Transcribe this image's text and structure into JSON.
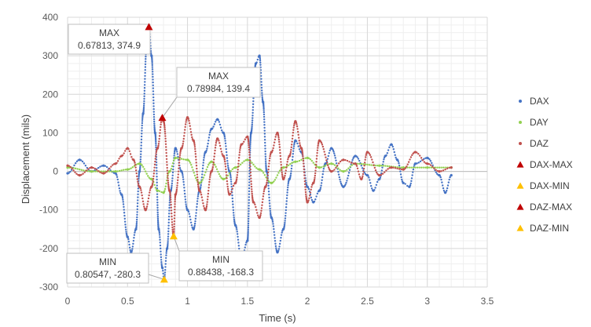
{
  "chart_data": {
    "type": "scatter",
    "xlabel": "Time (s)",
    "ylabel": "Displacement (mils)",
    "xlim": [
      0,
      3.5
    ],
    "ylim": [
      -300,
      400
    ],
    "x_ticks": [
      0,
      0.5,
      1,
      1.5,
      2,
      2.5,
      3,
      3.5
    ],
    "x_tick_labels": [
      "0",
      "0.5",
      "1",
      "1.5",
      "2",
      "2.5",
      "3",
      "3.5"
    ],
    "y_ticks": [
      -300,
      -200,
      -100,
      0,
      100,
      200,
      300,
      400
    ],
    "y_tick_labels": [
      "-300",
      "-200",
      "-100",
      "0",
      "100",
      "200",
      "300",
      "400"
    ],
    "grid": "major and minor",
    "legend_position": "right",
    "series": [
      {
        "name": "DAX",
        "color": "#4472C4",
        "marker": "dot",
        "x": [
          0,
          0.1,
          0.2,
          0.3,
          0.4,
          0.45,
          0.5,
          0.53,
          0.57,
          0.6,
          0.63,
          0.66,
          0.678,
          0.7,
          0.73,
          0.76,
          0.79,
          0.805,
          0.83,
          0.86,
          0.9,
          0.95,
          1.0,
          1.05,
          1.1,
          1.15,
          1.2,
          1.25,
          1.3,
          1.35,
          1.4,
          1.45,
          1.5,
          1.53,
          1.57,
          1.6,
          1.63,
          1.66,
          1.7,
          1.75,
          1.8,
          1.85,
          1.9,
          1.95,
          2.0,
          2.05,
          2.1,
          2.15,
          2.2,
          2.3,
          2.4,
          2.5,
          2.55,
          2.6,
          2.65,
          2.7,
          2.75,
          2.8,
          2.85,
          2.9,
          3.0,
          3.1,
          3.15,
          3.2
        ],
        "y": [
          -5,
          30,
          0,
          15,
          -5,
          -60,
          -170,
          -210,
          -150,
          0,
          150,
          330,
          374.9,
          300,
          100,
          -150,
          -250,
          -280.3,
          -200,
          -50,
          60,
          0,
          -100,
          -150,
          -50,
          50,
          110,
          135,
          100,
          0,
          -140,
          -230,
          -180,
          100,
          280,
          300,
          180,
          0,
          -120,
          -210,
          -150,
          -20,
          80,
          50,
          -40,
          -80,
          -50,
          20,
          60,
          -40,
          40,
          -10,
          -50,
          -20,
          40,
          70,
          30,
          -30,
          -40,
          20,
          35,
          -10,
          -55,
          -10
        ]
      },
      {
        "name": "DAY",
        "color": "#92D050",
        "marker": "dot",
        "x": [
          0,
          0.2,
          0.4,
          0.5,
          0.6,
          0.7,
          0.75,
          0.8,
          0.85,
          0.9,
          1.0,
          1.1,
          1.2,
          1.3,
          1.4,
          1.5,
          1.6,
          1.7,
          1.8,
          1.9,
          2.0,
          2.1,
          2.2,
          2.3,
          2.4,
          2.6,
          2.8,
          3.0,
          3.2
        ],
        "y": [
          10,
          0,
          0,
          5,
          20,
          -20,
          -50,
          -55,
          0,
          35,
          30,
          -30,
          25,
          -20,
          10,
          30,
          5,
          -30,
          10,
          25,
          35,
          10,
          20,
          0,
          20,
          15,
          10,
          10,
          10
        ]
      },
      {
        "name": "DAZ",
        "color": "#C0504D",
        "marker": "dot",
        "x": [
          0,
          0.1,
          0.2,
          0.3,
          0.4,
          0.45,
          0.5,
          0.55,
          0.6,
          0.65,
          0.7,
          0.75,
          0.79,
          0.8,
          0.85,
          0.884,
          0.9,
          0.95,
          1.0,
          1.05,
          1.1,
          1.15,
          1.2,
          1.25,
          1.3,
          1.35,
          1.4,
          1.45,
          1.5,
          1.55,
          1.6,
          1.65,
          1.7,
          1.75,
          1.8,
          1.85,
          1.9,
          1.95,
          2.0,
          2.05,
          2.1,
          2.2,
          2.3,
          2.4,
          2.45,
          2.5,
          2.6,
          2.7,
          2.8,
          2.9,
          3.0,
          3.1,
          3.2
        ],
        "y": [
          15,
          -10,
          10,
          -5,
          20,
          40,
          60,
          30,
          -40,
          -100,
          -40,
          60,
          139.4,
          130,
          -50,
          -168.3,
          -60,
          60,
          140,
          80,
          -50,
          -100,
          0,
          85,
          40,
          -60,
          -30,
          70,
          90,
          -80,
          -120,
          -40,
          50,
          100,
          -20,
          40,
          130,
          60,
          -80,
          -30,
          80,
          0,
          30,
          20,
          -20,
          50,
          -10,
          10,
          5,
          50,
          20,
          0,
          10
        ]
      }
    ],
    "markers": [
      {
        "name": "DAX-MAX",
        "shape": "triangle",
        "color": "#C00000",
        "x": 0.67813,
        "y": 374.9
      },
      {
        "name": "DAX-MIN",
        "shape": "triangle",
        "color": "#FFC000",
        "x": 0.80547,
        "y": -280.3
      },
      {
        "name": "DAZ-MAX",
        "shape": "triangle",
        "color": "#C00000",
        "x": 0.78984,
        "y": 139.4
      },
      {
        "name": "DAZ-MIN",
        "shape": "triangle",
        "color": "#FFC000",
        "x": 0.88438,
        "y": -168.3
      }
    ],
    "annotations": [
      {
        "id": "dax-max",
        "title": "MAX",
        "value": "0.67813, 374.9",
        "x": 0.67813,
        "y": 374.9
      },
      {
        "id": "daz-max",
        "title": "MAX",
        "value": "0.78984, 139.4",
        "x": 0.78984,
        "y": 139.4
      },
      {
        "id": "dax-min",
        "title": "MIN",
        "value": "0.80547, -280.3",
        "x": 0.80547,
        "y": -280.3
      },
      {
        "id": "daz-min",
        "title": "MIN",
        "value": "0.88438, -168.3",
        "x": 0.88438,
        "y": -168.3
      }
    ],
    "legend": [
      {
        "label": "DAX",
        "symbol": "dot",
        "color": "#4472C4"
      },
      {
        "label": "DAY",
        "symbol": "dot",
        "color": "#92D050"
      },
      {
        "label": "DAZ",
        "symbol": "dot",
        "color": "#C0504D"
      },
      {
        "label": "DAX-MAX",
        "symbol": "triangle",
        "color": "#C00000"
      },
      {
        "label": "DAX-MIN",
        "symbol": "triangle",
        "color": "#FFC000"
      },
      {
        "label": "DAZ-MAX",
        "symbol": "triangle",
        "color": "#C00000"
      },
      {
        "label": "DAZ-MIN",
        "symbol": "triangle",
        "color": "#FFC000"
      }
    ]
  }
}
